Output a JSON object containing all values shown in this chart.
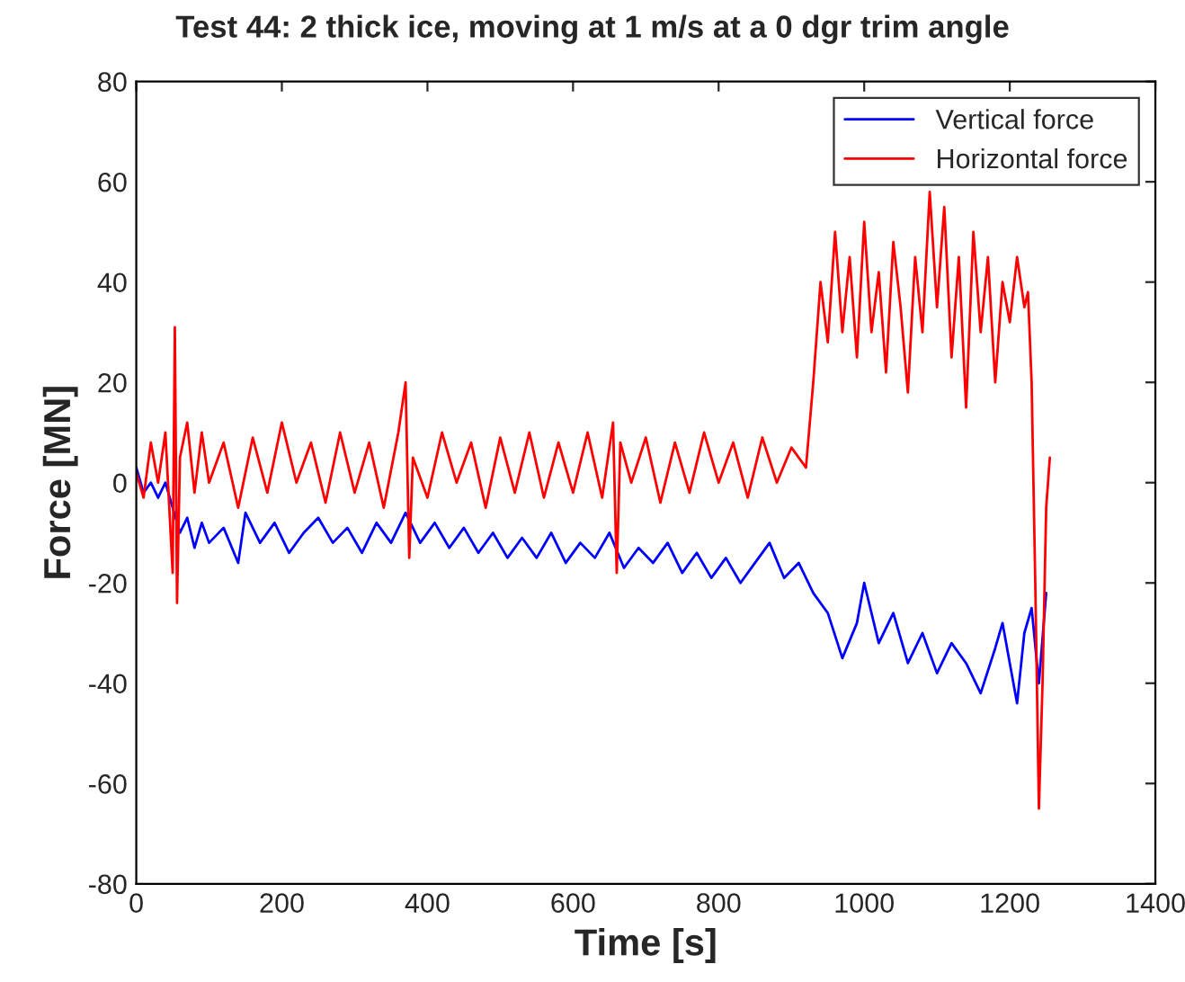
{
  "chart_data": {
    "type": "line",
    "title": "Test 44: 2 thick ice, moving at 1 m/s at a 0 dgr trim angle",
    "xlabel": "Time [s]",
    "ylabel": "Force [MN]",
    "xlim": [
      0,
      1400
    ],
    "xticks": [
      0,
      200,
      400,
      600,
      800,
      1000,
      1200,
      1400
    ],
    "ylim": [
      -80,
      80
    ],
    "yticks": [
      -80,
      -60,
      -40,
      -20,
      0,
      20,
      40,
      60,
      80
    ],
    "grid": false,
    "legend": "top right",
    "line_style": "solid",
    "marker": "none",
    "series": [
      {
        "name": "Vertical force",
        "color": "#0000ff",
        "x": [
          0,
          10,
          20,
          30,
          40,
          50,
          60,
          70,
          80,
          90,
          100,
          120,
          140,
          150,
          170,
          190,
          210,
          230,
          250,
          270,
          290,
          310,
          330,
          350,
          370,
          390,
          410,
          430,
          450,
          470,
          490,
          510,
          530,
          550,
          570,
          590,
          610,
          630,
          650,
          670,
          690,
          710,
          730,
          750,
          770,
          790,
          810,
          830,
          850,
          870,
          890,
          910,
          930,
          950,
          970,
          990,
          1000,
          1020,
          1040,
          1060,
          1080,
          1100,
          1120,
          1140,
          1160,
          1180,
          1190,
          1200,
          1210,
          1220,
          1230,
          1240,
          1250
        ],
        "values": [
          3,
          -2,
          0,
          -3,
          0,
          -5,
          -10,
          -7,
          -13,
          -8,
          -12,
          -9,
          -16,
          -6,
          -12,
          -8,
          -14,
          -10,
          -7,
          -12,
          -9,
          -14,
          -8,
          -12,
          -6,
          -12,
          -8,
          -13,
          -9,
          -14,
          -10,
          -15,
          -11,
          -15,
          -10,
          -16,
          -12,
          -15,
          -10,
          -17,
          -13,
          -16,
          -12,
          -18,
          -14,
          -19,
          -15,
          -20,
          -16,
          -12,
          -19,
          -16,
          -22,
          -26,
          -35,
          -28,
          -20,
          -32,
          -26,
          -36,
          -30,
          -38,
          -32,
          -36,
          -42,
          -33,
          -28,
          -36,
          -44,
          -30,
          -25,
          -40,
          -22
        ]
      },
      {
        "name": "Horizontal force",
        "color": "#ff0000",
        "x": [
          0,
          10,
          20,
          30,
          40,
          50,
          53,
          56,
          60,
          70,
          80,
          90,
          100,
          120,
          140,
          160,
          180,
          200,
          220,
          240,
          260,
          280,
          300,
          320,
          340,
          360,
          370,
          375,
          380,
          400,
          420,
          440,
          460,
          480,
          500,
          520,
          540,
          560,
          580,
          600,
          620,
          640,
          655,
          660,
          665,
          680,
          700,
          720,
          740,
          760,
          780,
          800,
          820,
          840,
          860,
          880,
          900,
          920,
          930,
          940,
          950,
          960,
          970,
          980,
          990,
          1000,
          1010,
          1020,
          1030,
          1040,
          1050,
          1060,
          1070,
          1080,
          1090,
          1100,
          1110,
          1120,
          1130,
          1140,
          1150,
          1160,
          1170,
          1180,
          1190,
          1200,
          1210,
          1220,
          1225,
          1230,
          1235,
          1240,
          1245,
          1250,
          1255
        ],
        "values": [
          2,
          -3,
          8,
          0,
          10,
          -18,
          31,
          -24,
          5,
          12,
          -2,
          10,
          0,
          8,
          -5,
          9,
          -2,
          12,
          0,
          8,
          -4,
          10,
          -2,
          8,
          -5,
          10,
          20,
          -15,
          5,
          -3,
          10,
          0,
          8,
          -5,
          9,
          -2,
          10,
          -3,
          8,
          -2,
          10,
          -3,
          12,
          -18,
          8,
          0,
          9,
          -4,
          8,
          -2,
          10,
          0,
          8,
          -3,
          9,
          0,
          7,
          3,
          20,
          40,
          28,
          50,
          30,
          45,
          25,
          52,
          30,
          42,
          22,
          48,
          35,
          18,
          45,
          30,
          58,
          35,
          55,
          25,
          45,
          15,
          50,
          30,
          45,
          20,
          40,
          32,
          45,
          35,
          38,
          20,
          -20,
          -65,
          -40,
          -5,
          5
        ]
      }
    ]
  }
}
